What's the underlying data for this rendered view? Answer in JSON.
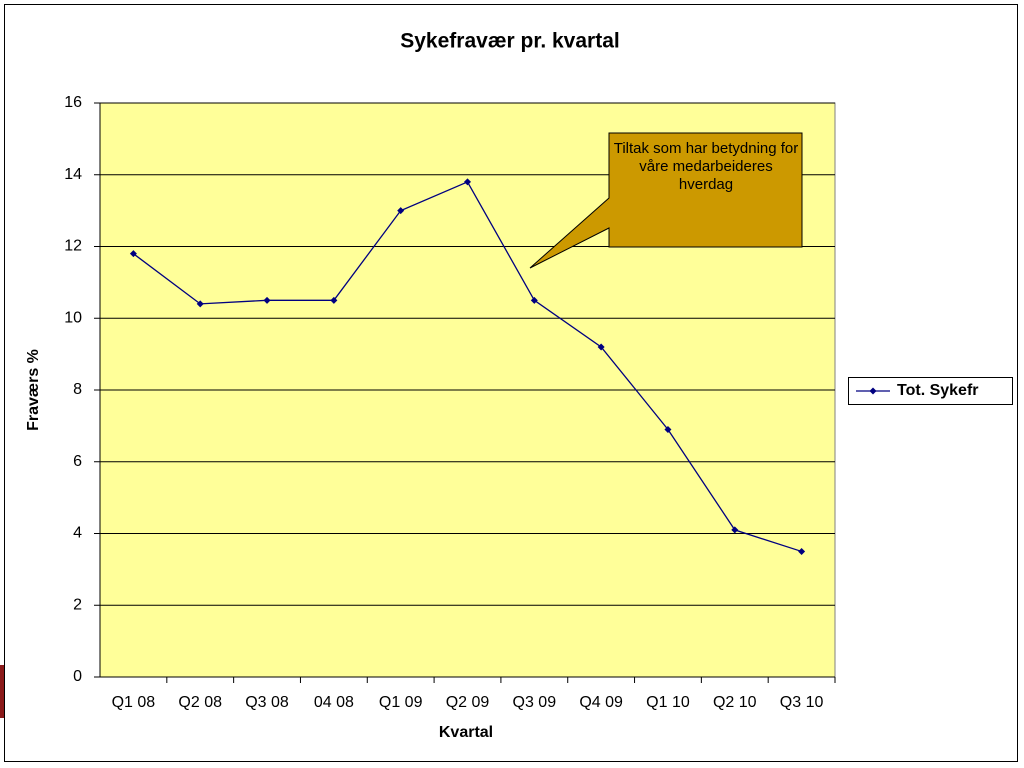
{
  "chart_data": {
    "type": "line",
    "title": "Sykefravær pr. kvartal",
    "x_label": "Kvartal",
    "y_label": "Fraværs %",
    "categories": [
      "Q1 08",
      "Q2 08",
      "Q3 08",
      "04 08",
      "Q1 09",
      "Q2 09",
      "Q3 09",
      "Q4 09",
      "Q1 10",
      "Q2 10",
      "Q3 10"
    ],
    "series": [
      {
        "name": "Tot. Sykefr",
        "color": "#000080",
        "values": [
          11.8,
          10.4,
          10.5,
          10.5,
          13.0,
          13.8,
          10.5,
          9.2,
          6.9,
          4.1,
          3.5
        ]
      }
    ],
    "ylim": [
      0,
      16
    ],
    "yticks": [
      0,
      2,
      4,
      6,
      8,
      10,
      12,
      14,
      16
    ],
    "grid": true,
    "legend": "right",
    "plot_background": "#ffff99",
    "annotation": {
      "text": "Tiltak som har betydning for våre medarbeideres hverdag",
      "color": "#cc9900"
    }
  }
}
